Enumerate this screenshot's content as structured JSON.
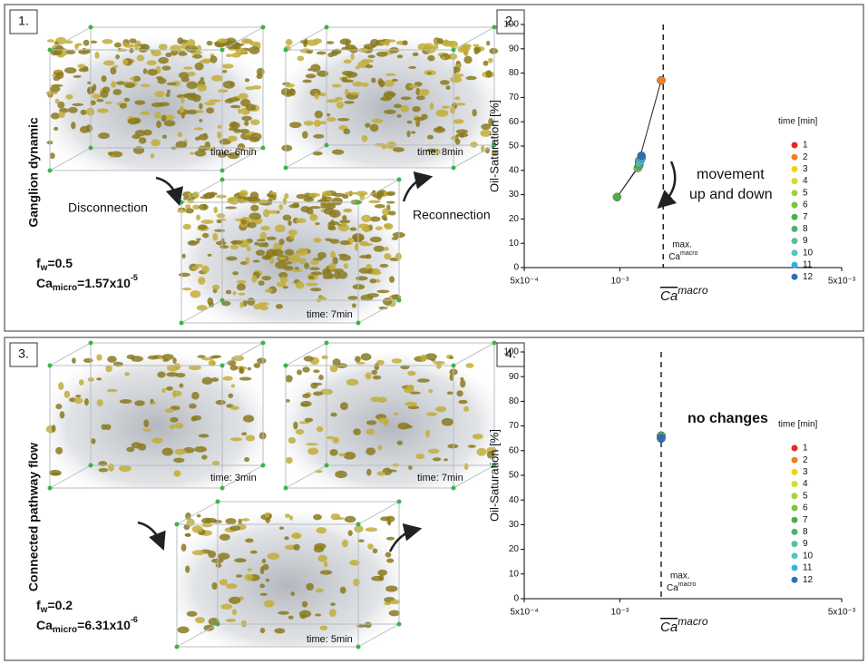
{
  "panels": [
    {
      "label": "1.",
      "title": "Ganglion dynamic",
      "times": [
        "time: 6min",
        "time: 8min",
        "time: 7min"
      ],
      "left_caption": "Disconnection",
      "right_caption": "Reconnection",
      "fw": {
        "base": "f",
        "sub": "w",
        "rest": "=0.5"
      },
      "ca": {
        "base": "Ca",
        "sub": "micro",
        "rest": "=1.57x10",
        "exp": "-5"
      }
    },
    {
      "label": "3.",
      "title": "Connected pathway flow",
      "times": [
        "time: 3min",
        "time: 7min",
        "time: 5min"
      ],
      "fw": {
        "base": "f",
        "sub": "w",
        "rest": "=0.2"
      },
      "ca": {
        "base": "Ca",
        "sub": "micro",
        "rest": "=6.31x10",
        "exp": "-6"
      }
    }
  ],
  "chart_data": [
    {
      "type": "scatter",
      "label": "2.",
      "ylabel": "Oil-Saturation [%]",
      "xlabel": {
        "base": "Ca",
        "sup": "macro"
      },
      "log_x": true,
      "connect": true,
      "xlim": [
        0.0005,
        0.005
      ],
      "xticks": [
        {
          "value": 0.0005,
          "label": "5x10⁻⁴"
        },
        {
          "value": 0.001,
          "label": "10⁻³"
        },
        {
          "value": 0.005,
          "label": "5x10⁻³"
        }
      ],
      "ylim": [
        0,
        100
      ],
      "yticks": [
        0,
        10,
        20,
        30,
        40,
        50,
        60,
        70,
        80,
        90,
        100
      ],
      "max_ca": 0.00137,
      "max_label": {
        "line1": "max.",
        "base": "Ca",
        "sup": "macro"
      },
      "annotation": [
        "movement",
        "up and down"
      ],
      "legend_title": "time [min]",
      "series": [
        {
          "name": "1",
          "color": "#e8262a",
          "x": [
            0.00135
          ],
          "values": [
            77
          ]
        },
        {
          "name": "2",
          "color": "#f07f24",
          "x": [
            0.00135
          ],
          "values": [
            77
          ]
        },
        {
          "name": "3",
          "color": "#f2d01c",
          "x": [
            0.00115
          ],
          "values": [
            44
          ]
        },
        {
          "name": "4",
          "color": "#d5dc2b",
          "x": [
            0.00115
          ],
          "values": [
            43
          ]
        },
        {
          "name": "5",
          "color": "#a9cf3b",
          "x": [
            0.00115
          ],
          "values": [
            42
          ]
        },
        {
          "name": "6",
          "color": "#7cc242",
          "x": [
            0.00114
          ],
          "values": [
            41
          ]
        },
        {
          "name": "7",
          "color": "#4caf48",
          "x": [
            0.00098
          ],
          "values": [
            29
          ]
        },
        {
          "name": "8",
          "color": "#4db36b",
          "x": [
            0.00115
          ],
          "values": [
            42
          ]
        },
        {
          "name": "9",
          "color": "#5cbf9a",
          "x": [
            0.00115
          ],
          "values": [
            43
          ]
        },
        {
          "name": "10",
          "color": "#57c4c3",
          "x": [
            0.00116
          ],
          "values": [
            44
          ]
        },
        {
          "name": "11",
          "color": "#33b3e6",
          "x": [
            0.00117
          ],
          "values": [
            45
          ]
        },
        {
          "name": "12",
          "color": "#2f6fb8",
          "x": [
            0.00117
          ],
          "values": [
            46
          ]
        }
      ]
    },
    {
      "type": "scatter",
      "label": "4.",
      "ylabel": "Oil-Saturation [%]",
      "xlabel": {
        "base": "Ca",
        "sup": "macro"
      },
      "log_x": true,
      "connect": false,
      "xlim": [
        0.0005,
        0.005
      ],
      "xticks": [
        {
          "value": 0.0005,
          "label": "5x10⁻⁴"
        },
        {
          "value": 0.001,
          "label": "10⁻³"
        },
        {
          "value": 0.005,
          "label": "5x10⁻³"
        }
      ],
      "ylim": [
        0,
        100
      ],
      "yticks": [
        0,
        10,
        20,
        30,
        40,
        50,
        60,
        70,
        80,
        90,
        100
      ],
      "max_ca": 0.00135,
      "max_label": {
        "line1": "max.",
        "base": "Ca",
        "sup": "macro"
      },
      "annotation": [
        "no changes"
      ],
      "legend_title": "time [min]",
      "series": [
        {
          "name": "1",
          "color": "#e8262a",
          "x": [
            0.00135
          ],
          "values": [
            66
          ]
        },
        {
          "name": "2",
          "color": "#f07f24",
          "x": [
            0.00135
          ],
          "values": [
            66
          ]
        },
        {
          "name": "3",
          "color": "#f2d01c",
          "x": [
            0.00135
          ],
          "values": [
            66
          ]
        },
        {
          "name": "4",
          "color": "#d5dc2b",
          "x": [
            0.00135
          ],
          "values": [
            66
          ]
        },
        {
          "name": "5",
          "color": "#a9cf3b",
          "x": [
            0.00135
          ],
          "values": [
            66
          ]
        },
        {
          "name": "6",
          "color": "#7cc242",
          "x": [
            0.00135
          ],
          "values": [
            66
          ]
        },
        {
          "name": "7",
          "color": "#4caf48",
          "x": [
            0.00135
          ],
          "values": [
            66
          ]
        },
        {
          "name": "8",
          "color": "#4db36b",
          "x": [
            0.00135
          ],
          "values": [
            66
          ]
        },
        {
          "name": "9",
          "color": "#5cbf9a",
          "x": [
            0.00135
          ],
          "values": [
            65
          ]
        },
        {
          "name": "10",
          "color": "#57c4c3",
          "x": [
            0.00135
          ],
          "values": [
            65
          ]
        },
        {
          "name": "11",
          "color": "#33b3e6",
          "x": [
            0.00135
          ],
          "values": [
            65
          ]
        },
        {
          "name": "12",
          "color": "#2f6fb8",
          "x": [
            0.00135
          ],
          "values": [
            65
          ]
        }
      ]
    }
  ]
}
